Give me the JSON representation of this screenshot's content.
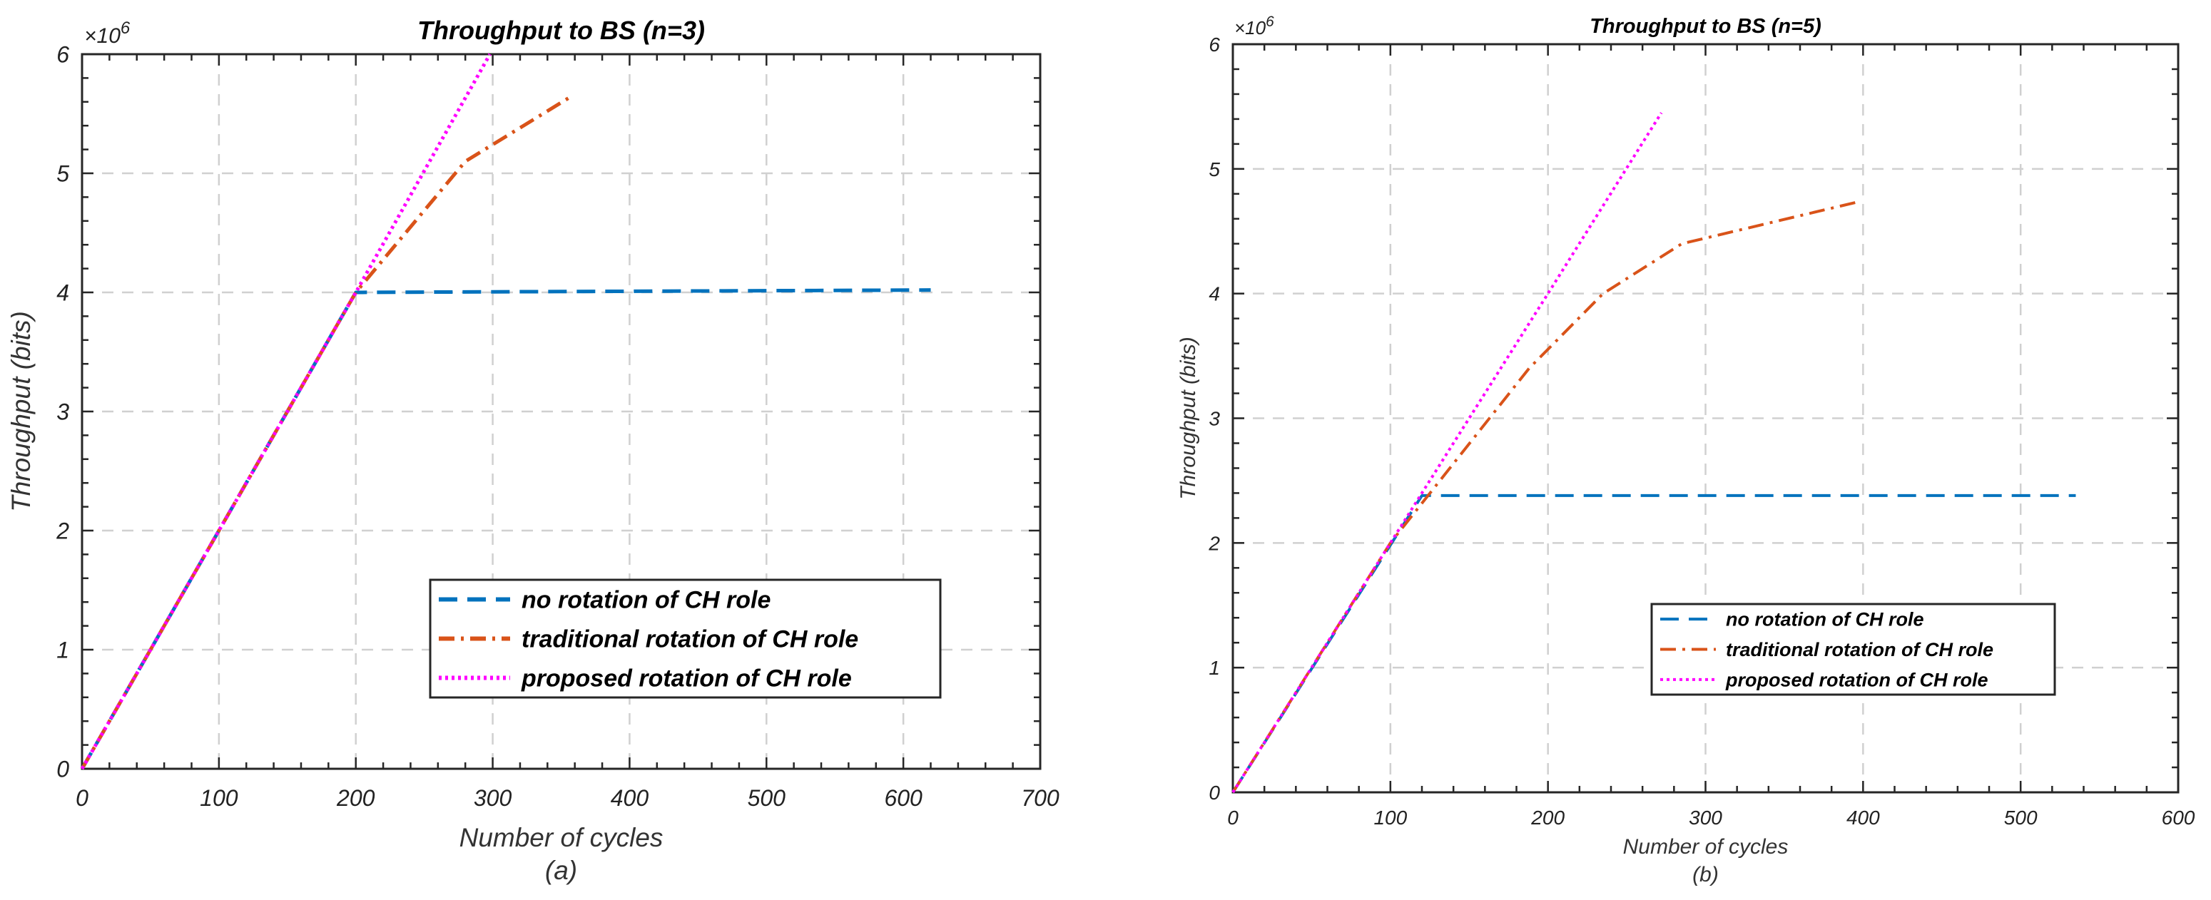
{
  "chart_data": [
    {
      "type": "line",
      "title": "Throughput to BS (n=3)",
      "xlabel": "Number of cycles",
      "ylabel": "Throughput (bits)",
      "caption": "(a)",
      "exponent_label": "×10",
      "exponent_power": "6",
      "xlim": [
        0,
        700
      ],
      "ylim": [
        0,
        6
      ],
      "xticks": [
        0,
        100,
        200,
        300,
        400,
        500,
        600,
        700
      ],
      "yticks": [
        0,
        1,
        2,
        3,
        4,
        5,
        6
      ],
      "grid": true,
      "legend_position": "bottom-right",
      "series": [
        {
          "name": "no rotation of CH role",
          "color": "#0072BD",
          "style": "dashed",
          "x": [
            0,
            200,
            620
          ],
          "y": [
            0,
            4.0,
            4.02
          ]
        },
        {
          "name": "traditional rotation of CH role",
          "color": "#D95319",
          "style": "dashdot",
          "x": [
            0,
            200,
            280,
            358
          ],
          "y": [
            0,
            4.0,
            5.1,
            5.65
          ]
        },
        {
          "name": "proposed rotation of CH role",
          "color": "#FF00FF",
          "style": "dotted",
          "x": [
            0,
            200,
            298
          ],
          "y": [
            0,
            4.0,
            6.0
          ]
        }
      ]
    },
    {
      "type": "line",
      "title": "Throughput to BS (n=5)",
      "xlabel": "Number of cycles",
      "ylabel": "Throughput (bits)",
      "caption": "(b)",
      "exponent_label": "×10",
      "exponent_power": "6",
      "xlim": [
        0,
        600
      ],
      "ylim": [
        0,
        6
      ],
      "xticks": [
        0,
        100,
        200,
        300,
        400,
        500,
        600
      ],
      "yticks": [
        0,
        1,
        2,
        3,
        4,
        5,
        6
      ],
      "grid": true,
      "legend_position": "bottom-right",
      "series": [
        {
          "name": "no rotation of CH role",
          "color": "#0072BD",
          "style": "dashed",
          "x": [
            0,
            120,
            535
          ],
          "y": [
            0,
            2.38,
            2.38
          ]
        },
        {
          "name": "traditional rotation of CH role",
          "color": "#D95319",
          "style": "dashdot",
          "x": [
            0,
            100,
            188,
            235,
            285,
            395
          ],
          "y": [
            0,
            2.0,
            3.4,
            4.0,
            4.4,
            4.73
          ]
        },
        {
          "name": "proposed rotation of CH role",
          "color": "#FF00FF",
          "style": "dotted",
          "x": [
            0,
            100,
            200,
            272
          ],
          "y": [
            0,
            2.0,
            4.0,
            5.45
          ]
        }
      ]
    }
  ]
}
